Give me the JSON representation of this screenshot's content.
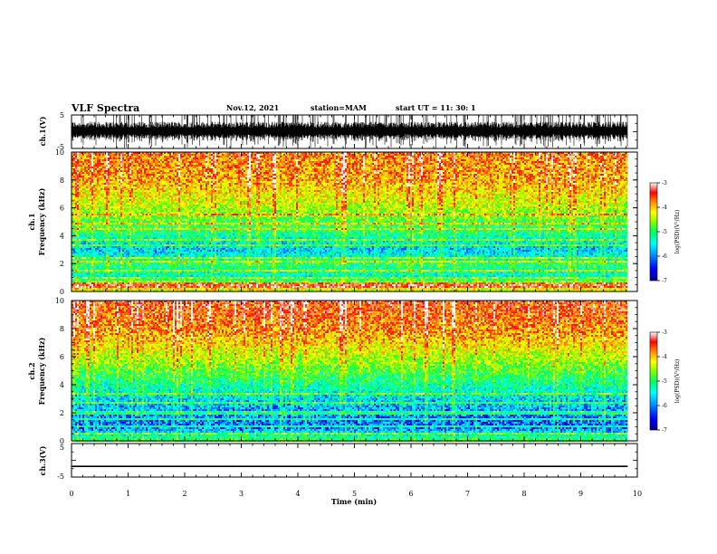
{
  "header": {
    "title": "VLF Spectra",
    "date": "Nov.12, 2021",
    "station": "station=MAM",
    "start": "start  UT =   11: 30: 1"
  },
  "chart_data": [
    {
      "type": "line",
      "name": "ch1-waveform",
      "ylabel": "ch.1(V)",
      "ylim": [
        -5,
        5
      ],
      "yticks": [
        "5",
        "-5"
      ],
      "xlim": [
        0,
        10
      ],
      "data_extent_x": [
        0,
        9.83
      ],
      "description_values": {
        "typical_amplitude_V": [
          -3,
          3
        ],
        "spike_amplitude_V": [
          -5,
          5
        ]
      }
    },
    {
      "type": "heatmap",
      "name": "ch1-spectrogram",
      "ylabel": "ch.1\nFrequency (kHz)",
      "ylim": [
        0,
        10
      ],
      "yticks": [
        "0",
        "2",
        "4",
        "6",
        "8",
        "10"
      ],
      "xlim": [
        0,
        10
      ],
      "data_extent_x": [
        0,
        9.83
      ],
      "colorbar": {
        "label": "log(PSD)(V²/Hz)",
        "range": [
          -7,
          -3
        ],
        "ticks": [
          "-3",
          "-4",
          "-5",
          "-6",
          "-7"
        ],
        "colors": [
          "#000080",
          "#0000ff",
          "#00a0ff",
          "#00ffff",
          "#00ff60",
          "#80ff00",
          "#ffff00",
          "#ff9000",
          "#ff0000",
          "#ffffff"
        ]
      },
      "level_profile_by_freq_kHz": [
        [
          0,
          -4.5
        ],
        [
          0.5,
          -4.2
        ],
        [
          1,
          -5.6
        ],
        [
          2,
          -5.2
        ],
        [
          3,
          -5.9
        ],
        [
          4,
          -5.4
        ],
        [
          5,
          -5.0
        ],
        [
          6,
          -4.6
        ],
        [
          7,
          -4.3
        ],
        [
          8,
          -4.0
        ],
        [
          9,
          -3.9
        ],
        [
          10,
          -3.8
        ]
      ],
      "horizontal_lines_kHz": [
        0.3,
        0.5,
        0.6,
        1.0,
        1.5,
        2.1,
        2.4,
        3.3,
        3.7,
        4.5,
        4.9,
        5.5
      ]
    },
    {
      "type": "heatmap",
      "name": "ch2-spectrogram",
      "ylabel": "ch.2\nFrequency (kHz)",
      "ylim": [
        0,
        10
      ],
      "yticks": [
        "0",
        "2",
        "4",
        "6",
        "8",
        "10"
      ],
      "xlim": [
        0,
        10
      ],
      "data_extent_x": [
        0,
        9.83
      ],
      "colorbar": {
        "label": "log(PSD)(V²/Hz)",
        "range": [
          -7,
          -3
        ],
        "ticks": [
          "-3",
          "-4",
          "-5",
          "-6",
          "-7"
        ],
        "colors": [
          "#000080",
          "#0000ff",
          "#00a0ff",
          "#00ffff",
          "#00ff60",
          "#80ff00",
          "#ffff00",
          "#ff9000",
          "#ff0000",
          "#ffffff"
        ]
      },
      "level_profile_by_freq_kHz": [
        [
          0,
          -5.0
        ],
        [
          1,
          -6.3
        ],
        [
          2,
          -6.1
        ],
        [
          3,
          -5.8
        ],
        [
          4,
          -5.4
        ],
        [
          5,
          -5.0
        ],
        [
          6,
          -4.6
        ],
        [
          7,
          -4.2
        ],
        [
          8,
          -3.9
        ],
        [
          9,
          -3.7
        ],
        [
          10,
          -3.6
        ]
      ],
      "horizontal_lines_kHz": [
        0.5,
        1.0,
        1.5,
        2.0,
        2.7,
        3.3
      ]
    },
    {
      "type": "line",
      "name": "ch3-waveform",
      "ylabel": "ch.3(V)",
      "ylim": [
        -5,
        5
      ],
      "yticks": [
        "5",
        "-5"
      ],
      "xlim": [
        0,
        10
      ],
      "x": [
        0,
        9.83
      ],
      "y": [
        -1.8,
        -1.8
      ]
    }
  ],
  "xaxis": {
    "label": "Time (min)",
    "ticks": [
      "0",
      "1",
      "2",
      "3",
      "4",
      "5",
      "6",
      "7",
      "8",
      "9",
      "10"
    ]
  }
}
